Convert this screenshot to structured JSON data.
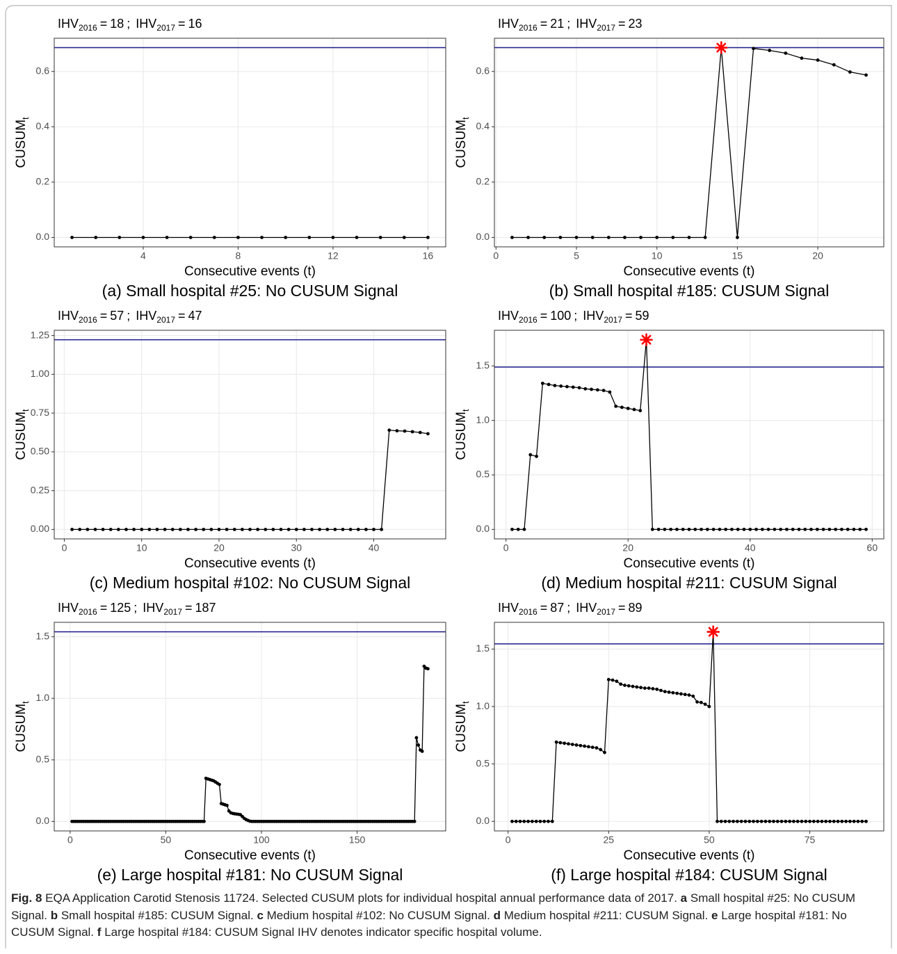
{
  "chart_data": [
    {
      "type": "line",
      "ihv": [
        {
          "name": "IHV",
          "sub": "2016",
          "value": 18
        },
        {
          "name": "IHV",
          "sub": "2017",
          "value": 16
        }
      ],
      "relation": "=",
      "separator": ";",
      "xlabel": "Consecutive events (t)",
      "ylabel": "CUSUM",
      "ylabel_sub": "t",
      "caption": "(a) Small hospital #25: No CUSUM Signal",
      "x": [
        1,
        2,
        3,
        4,
        5,
        6,
        7,
        8,
        9,
        10,
        11,
        12,
        13,
        14,
        15,
        16
      ],
      "values": [
        0,
        0,
        0,
        0,
        0,
        0,
        0,
        0,
        0,
        0,
        0,
        0,
        0,
        0,
        0,
        0
      ],
      "color": "#000000",
      "threshold": 0.686,
      "threshold_color": "#1a1a8b",
      "xlim": [
        0.25,
        16.75
      ],
      "xticks": [
        4,
        8,
        12,
        16
      ],
      "ylim": [
        -0.034,
        0.72
      ],
      "yticks": [
        {
          "value": 0,
          "label": "0.0"
        },
        0.2,
        0.4,
        0.6
      ],
      "grid": true
    },
    {
      "type": "line",
      "ihv": [
        {
          "name": "IHV",
          "sub": "2016",
          "value": 21
        },
        {
          "name": "IHV",
          "sub": "2017",
          "value": 23
        }
      ],
      "relation": "=",
      "separator": ";",
      "xlabel": "Consecutive events (t)",
      "ylabel": "CUSUM",
      "ylabel_sub": "t",
      "caption": "(b) Small hospital #185: CUSUM Signal",
      "x": [
        1,
        2,
        3,
        4,
        5,
        6,
        7,
        8,
        9,
        10,
        11,
        12,
        13,
        14,
        15,
        16,
        17,
        18,
        19,
        20,
        21,
        22,
        23
      ],
      "values": [
        0,
        0,
        0,
        0,
        0,
        0,
        0,
        0,
        0,
        0,
        0,
        0,
        0,
        0.686,
        0,
        0.683,
        0.676,
        0.666,
        0.648,
        0.641,
        0.624,
        0.598,
        0.587
      ],
      "color": "#000000",
      "threshold": 0.686,
      "threshold_color": "#1a1a8b",
      "signal": {
        "x": 14,
        "value": 0.686
      },
      "signal_color": "#ff0000",
      "xlim": [
        -0.1,
        24.1
      ],
      "xticks": [
        0,
        5,
        10,
        15,
        20
      ],
      "ylim": [
        -0.034,
        0.72
      ],
      "yticks": [
        {
          "value": 0,
          "label": "0.0"
        },
        0.2,
        0.4,
        0.6
      ],
      "grid": true
    },
    {
      "type": "line",
      "ihv": [
        {
          "name": "IHV",
          "sub": "2016",
          "value": 57
        },
        {
          "name": "IHV",
          "sub": "2017",
          "value": 47
        }
      ],
      "relation": "=",
      "separator": ";",
      "xlabel": "Consecutive events (t)",
      "ylabel": "CUSUM",
      "ylabel_sub": "t",
      "caption": "(c) Medium hospital #102: No CUSUM Signal",
      "x": [
        1,
        2,
        3,
        4,
        5,
        6,
        7,
        8,
        9,
        10,
        11,
        12,
        13,
        14,
        15,
        16,
        17,
        18,
        19,
        20,
        21,
        22,
        23,
        24,
        25,
        26,
        27,
        28,
        29,
        30,
        31,
        32,
        33,
        34,
        35,
        36,
        37,
        38,
        39,
        40,
        41,
        42,
        43,
        44,
        45,
        46,
        47
      ],
      "values": [
        0,
        0,
        0,
        0,
        0,
        0,
        0,
        0,
        0,
        0,
        0,
        0,
        0,
        0,
        0,
        0,
        0,
        0,
        0,
        0,
        0,
        0,
        0,
        0,
        0,
        0,
        0,
        0,
        0,
        0,
        0,
        0,
        0,
        0,
        0,
        0,
        0,
        0,
        0,
        0,
        0,
        0.64,
        0.636,
        0.634,
        0.63,
        0.625,
        0.617
      ],
      "color": "#000000",
      "threshold": 1.223,
      "threshold_color": "#1a1a8b",
      "xlim": [
        -1.3,
        49.3
      ],
      "xticks": [
        0,
        10,
        20,
        30,
        40
      ],
      "ylim": [
        -0.061,
        1.284
      ],
      "yticks": [
        {
          "value": 0,
          "label": "0.00"
        },
        0.25,
        {
          "value": 0.5,
          "label": "0.50"
        },
        0.75,
        {
          "value": 1,
          "label": "1.00"
        },
        1.25
      ],
      "grid": true
    },
    {
      "type": "line",
      "ihv": [
        {
          "name": "IHV",
          "sub": "2016",
          "value": 100
        },
        {
          "name": "IHV",
          "sub": "2017",
          "value": 59
        }
      ],
      "relation": "=",
      "separator": ";",
      "xlabel": "Consecutive events (t)",
      "ylabel": "CUSUM",
      "ylabel_sub": "t",
      "caption": "(d) Medium hospital #211: CUSUM Signal",
      "x": [
        1,
        2,
        3,
        4,
        5,
        6,
        7,
        8,
        9,
        10,
        11,
        12,
        13,
        14,
        15,
        16,
        17,
        18,
        19,
        20,
        21,
        22,
        23,
        24,
        25,
        26,
        27,
        28,
        29,
        30,
        31,
        32,
        33,
        34,
        35,
        36,
        37,
        38,
        39,
        40,
        41,
        42,
        43,
        44,
        45,
        46,
        47,
        48,
        49,
        50,
        51,
        52,
        53,
        54,
        55,
        56,
        57,
        58,
        59
      ],
      "values": [
        0,
        0,
        0,
        0.685,
        0.67,
        1.34,
        1.33,
        1.32,
        1.315,
        1.31,
        1.305,
        1.3,
        1.29,
        1.285,
        1.28,
        1.275,
        1.26,
        1.13,
        1.12,
        1.11,
        1.1,
        1.09,
        1.74,
        0,
        0,
        0,
        0,
        0,
        0,
        0,
        0,
        0,
        0,
        0,
        0,
        0,
        0,
        0,
        0,
        0,
        0,
        0,
        0,
        0,
        0,
        0,
        0,
        0,
        0,
        0,
        0,
        0,
        0,
        0,
        0,
        0,
        0,
        0,
        0
      ],
      "color": "#000000",
      "threshold": 1.49,
      "threshold_color": "#1a1a8b",
      "signal": {
        "x": 23,
        "value": 1.74
      },
      "signal_color": "#ff0000",
      "xlim": [
        -1.9,
        61.9
      ],
      "xticks": [
        0,
        20,
        40,
        60
      ],
      "ylim": [
        -0.087,
        1.827
      ],
      "yticks": [
        {
          "value": 0,
          "label": "0.0"
        },
        0.5,
        {
          "value": 1,
          "label": "1.0"
        },
        1.5
      ],
      "grid": true
    },
    {
      "type": "line",
      "ihv": [
        {
          "name": "IHV",
          "sub": "2016",
          "value": 125
        },
        {
          "name": "IHV",
          "sub": "2017",
          "value": 187
        }
      ],
      "relation": "=",
      "separator": ";",
      "xlabel": "Consecutive events (t)",
      "ylabel": "CUSUM",
      "ylabel_sub": "t",
      "caption": "(e) Large hospital #181: No CUSUM Signal",
      "x": [
        1,
        2,
        3,
        4,
        5,
        6,
        7,
        8,
        9,
        10,
        11,
        12,
        13,
        14,
        15,
        16,
        17,
        18,
        19,
        20,
        21,
        22,
        23,
        24,
        25,
        26,
        27,
        28,
        29,
        30,
        31,
        32,
        33,
        34,
        35,
        36,
        37,
        38,
        39,
        40,
        41,
        42,
        43,
        44,
        45,
        46,
        47,
        48,
        49,
        50,
        51,
        52,
        53,
        54,
        55,
        56,
        57,
        58,
        59,
        60,
        61,
        62,
        63,
        64,
        65,
        66,
        67,
        68,
        69,
        70,
        71,
        72,
        73,
        74,
        75,
        76,
        77,
        78,
        79,
        80,
        81,
        82,
        83,
        84,
        85,
        86,
        87,
        88,
        89,
        90,
        91,
        92,
        93,
        94,
        95,
        96,
        97,
        98,
        99,
        100,
        101,
        102,
        103,
        104,
        105,
        106,
        107,
        108,
        109,
        110,
        111,
        112,
        113,
        114,
        115,
        116,
        117,
        118,
        119,
        120,
        121,
        122,
        123,
        124,
        125,
        126,
        127,
        128,
        129,
        130,
        131,
        132,
        133,
        134,
        135,
        136,
        137,
        138,
        139,
        140,
        141,
        142,
        143,
        144,
        145,
        146,
        147,
        148,
        149,
        150,
        151,
        152,
        153,
        154,
        155,
        156,
        157,
        158,
        159,
        160,
        161,
        162,
        163,
        164,
        165,
        166,
        167,
        168,
        169,
        170,
        171,
        172,
        173,
        174,
        175,
        176,
        177,
        178,
        179,
        180,
        181,
        182,
        183,
        184,
        185,
        186,
        187
      ],
      "values": [
        0,
        0,
        0,
        0,
        0,
        0,
        0,
        0,
        0,
        0,
        0,
        0,
        0,
        0,
        0,
        0,
        0,
        0,
        0,
        0,
        0,
        0,
        0,
        0,
        0,
        0,
        0,
        0,
        0,
        0,
        0,
        0,
        0,
        0,
        0,
        0,
        0,
        0,
        0,
        0,
        0,
        0,
        0,
        0,
        0,
        0,
        0,
        0,
        0,
        0,
        0,
        0,
        0,
        0,
        0,
        0,
        0,
        0,
        0,
        0,
        0,
        0,
        0,
        0,
        0,
        0,
        0,
        0,
        0,
        0,
        0.35,
        0.345,
        0.34,
        0.335,
        0.33,
        0.32,
        0.31,
        0.3,
        0.145,
        0.14,
        0.135,
        0.13,
        0.085,
        0.07,
        0.065,
        0.062,
        0.06,
        0.058,
        0.055,
        0.04,
        0.025,
        0.015,
        0.008,
        0.002,
        0,
        0,
        0,
        0,
        0,
        0,
        0,
        0,
        0,
        0,
        0,
        0,
        0,
        0,
        0,
        0,
        0,
        0,
        0,
        0,
        0,
        0,
        0,
        0,
        0,
        0,
        0,
        0,
        0,
        0,
        0,
        0,
        0,
        0,
        0,
        0,
        0,
        0,
        0,
        0,
        0,
        0,
        0,
        0,
        0,
        0,
        0,
        0,
        0,
        0,
        0,
        0,
        0,
        0,
        0,
        0,
        0,
        0,
        0,
        0,
        0,
        0,
        0,
        0,
        0,
        0,
        0,
        0,
        0,
        0,
        0,
        0,
        0,
        0,
        0,
        0,
        0,
        0,
        0,
        0,
        0,
        0,
        0,
        0,
        0,
        0,
        0.68,
        0.62,
        0.58,
        0.57,
        1.26,
        1.245,
        1.24
      ],
      "color": "#000000",
      "threshold": 1.54,
      "threshold_color": "#1a1a8b",
      "xlim": [
        -8.3,
        196.3
      ],
      "xticks": [
        0,
        50,
        100,
        150
      ],
      "ylim": [
        -0.077,
        1.617
      ],
      "yticks": [
        {
          "value": 0,
          "label": "0.0"
        },
        0.5,
        {
          "value": 1,
          "label": "1.0"
        },
        1.5
      ],
      "grid": true
    },
    {
      "type": "line",
      "ihv": [
        {
          "name": "IHV",
          "sub": "2016",
          "value": 87
        },
        {
          "name": "IHV",
          "sub": "2017",
          "value": 89
        }
      ],
      "relation": "=",
      "separator": ";",
      "xlabel": "Consecutive events (t)",
      "ylabel": "CUSUM",
      "ylabel_sub": "t",
      "caption": "(f) Large hospital #184: CUSUM Signal",
      "x": [
        1,
        2,
        3,
        4,
        5,
        6,
        7,
        8,
        9,
        10,
        11,
        12,
        13,
        14,
        15,
        16,
        17,
        18,
        19,
        20,
        21,
        22,
        23,
        24,
        25,
        26,
        27,
        28,
        29,
        30,
        31,
        32,
        33,
        34,
        35,
        36,
        37,
        38,
        39,
        40,
        41,
        42,
        43,
        44,
        45,
        46,
        47,
        48,
        49,
        50,
        51,
        52,
        53,
        54,
        55,
        56,
        57,
        58,
        59,
        60,
        61,
        62,
        63,
        64,
        65,
        66,
        67,
        68,
        69,
        70,
        71,
        72,
        73,
        74,
        75,
        76,
        77,
        78,
        79,
        80,
        81,
        82,
        83,
        84,
        85,
        86,
        87,
        88,
        89
      ],
      "values": [
        0,
        0,
        0,
        0,
        0,
        0,
        0,
        0,
        0,
        0,
        0,
        0.69,
        0.685,
        0.68,
        0.675,
        0.67,
        0.665,
        0.66,
        0.655,
        0.65,
        0.645,
        0.64,
        0.625,
        0.6,
        1.235,
        1.23,
        1.22,
        1.195,
        1.185,
        1.18,
        1.175,
        1.17,
        1.165,
        1.16,
        1.16,
        1.155,
        1.15,
        1.14,
        1.13,
        1.125,
        1.12,
        1.115,
        1.11,
        1.105,
        1.1,
        1.09,
        1.04,
        1.035,
        1.02,
        1.0,
        1.65,
        0,
        0,
        0,
        0,
        0,
        0,
        0,
        0,
        0,
        0,
        0,
        0,
        0,
        0,
        0,
        0,
        0,
        0,
        0,
        0,
        0,
        0,
        0,
        0,
        0,
        0,
        0,
        0,
        0,
        0,
        0,
        0,
        0,
        0,
        0,
        0,
        0,
        0
      ],
      "color": "#000000",
      "threshold": 1.545,
      "threshold_color": "#1a1a8b",
      "signal": {
        "x": 51,
        "value": 1.65
      },
      "signal_color": "#ff0000",
      "xlim": [
        -3.4,
        93.4
      ],
      "xticks": [
        0,
        25,
        50,
        75
      ],
      "ylim": [
        -0.083,
        1.733
      ],
      "yticks": [
        {
          "value": 0,
          "label": "0.0"
        },
        0.5,
        {
          "value": 1,
          "label": "1.0"
        },
        1.5
      ],
      "grid": true
    }
  ],
  "caption": {
    "label": "Fig. 8",
    "text": "EQA Application Carotid Stenosis 11724. Selected CUSUM plots for individual hospital annual performance data of 2017.",
    "items": [
      {
        "letter": "a",
        "text": "Small hospital #25: No CUSUM Signal."
      },
      {
        "letter": "b",
        "text": "Small hospital #185: CUSUM Signal."
      },
      {
        "letter": "c",
        "text": "Medium hospital #102: No CUSUM Signal."
      },
      {
        "letter": "d",
        "text": "Medium hospital #211: CUSUM Signal."
      },
      {
        "letter": "e",
        "text": "Large hospital #181: No CUSUM Signal."
      },
      {
        "letter": "f",
        "text": "Large hospital #184: CUSUM Signal"
      }
    ],
    "tail": "IHV denotes indicator specific hospital volume."
  }
}
